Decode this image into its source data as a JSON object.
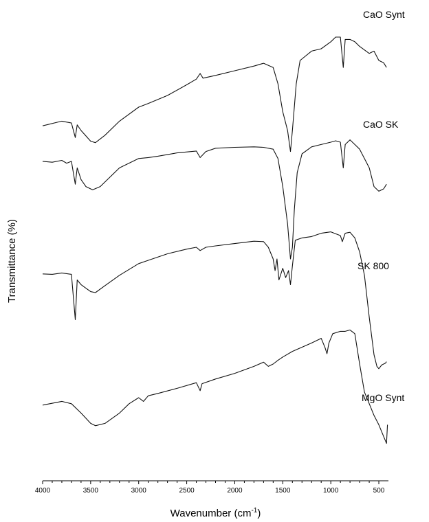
{
  "chart_data": {
    "type": "line",
    "xlabel": "Wavenumber (cm",
    "xlabel_sup": "-1",
    "xlabel_end": ")",
    "ylabel": "Transmittance (%)",
    "xlim": [
      4000,
      400
    ],
    "x_reversed": true,
    "x_ticks": [
      4000,
      3500,
      3000,
      2500,
      2000,
      1500,
      1000,
      500
    ],
    "x_tick_labels": [
      "4000",
      "3500",
      "3000",
      "2500",
      "2000",
      "1500",
      "1000",
      "500"
    ],
    "y_ticks_shown": false,
    "ylim": [
      0,
      100
    ],
    "grid": false,
    "series": [
      {
        "name": "CaO Synt",
        "points": [
          [
            4000,
            76
          ],
          [
            3800,
            77
          ],
          [
            3700,
            76.6
          ],
          [
            3660,
            73.5
          ],
          [
            3640,
            76.2
          ],
          [
            3600,
            75
          ],
          [
            3500,
            72.7
          ],
          [
            3450,
            72.4
          ],
          [
            3350,
            74
          ],
          [
            3200,
            77
          ],
          [
            3000,
            80
          ],
          [
            2900,
            80.8
          ],
          [
            2700,
            82.5
          ],
          [
            2500,
            84.8
          ],
          [
            2400,
            86
          ],
          [
            2360,
            87.2
          ],
          [
            2330,
            86.2
          ],
          [
            2200,
            86.8
          ],
          [
            2000,
            87.8
          ],
          [
            1800,
            88.8
          ],
          [
            1700,
            89.4
          ],
          [
            1600,
            88.5
          ],
          [
            1550,
            85
          ],
          [
            1500,
            79
          ],
          [
            1450,
            75
          ],
          [
            1420,
            70.5
          ],
          [
            1400,
            75
          ],
          [
            1360,
            85
          ],
          [
            1320,
            90
          ],
          [
            1200,
            92
          ],
          [
            1100,
            92.5
          ],
          [
            1000,
            94
          ],
          [
            950,
            95
          ],
          [
            900,
            95
          ],
          [
            870,
            88.5
          ],
          [
            850,
            94.5
          ],
          [
            800,
            94.5
          ],
          [
            750,
            94
          ],
          [
            700,
            93
          ],
          [
            600,
            91.5
          ],
          [
            550,
            92
          ],
          [
            500,
            90
          ],
          [
            450,
            89.5
          ],
          [
            420,
            88.5
          ]
        ]
      },
      {
        "name": "CaO SK",
        "points": [
          [
            4000,
            68.4
          ],
          [
            3900,
            68.2
          ],
          [
            3800,
            68.6
          ],
          [
            3750,
            68
          ],
          [
            3700,
            68.4
          ],
          [
            3660,
            63.5
          ],
          [
            3640,
            67
          ],
          [
            3600,
            64.5
          ],
          [
            3550,
            63
          ],
          [
            3480,
            62.3
          ],
          [
            3400,
            63
          ],
          [
            3300,
            65
          ],
          [
            3200,
            67
          ],
          [
            3000,
            69
          ],
          [
            2900,
            69.2
          ],
          [
            2800,
            69.5
          ],
          [
            2600,
            70.2
          ],
          [
            2400,
            70.6
          ],
          [
            2360,
            69.2
          ],
          [
            2300,
            70.5
          ],
          [
            2200,
            71.2
          ],
          [
            2000,
            71.4
          ],
          [
            1800,
            71.5
          ],
          [
            1700,
            71.4
          ],
          [
            1600,
            71
          ],
          [
            1550,
            69
          ],
          [
            1500,
            63
          ],
          [
            1450,
            55
          ],
          [
            1420,
            47.5
          ],
          [
            1400,
            50
          ],
          [
            1380,
            58
          ],
          [
            1350,
            66
          ],
          [
            1300,
            70
          ],
          [
            1200,
            71.5
          ],
          [
            1100,
            72
          ],
          [
            1000,
            72.5
          ],
          [
            950,
            72.8
          ],
          [
            900,
            72.5
          ],
          [
            870,
            67
          ],
          [
            850,
            72
          ],
          [
            800,
            73
          ],
          [
            750,
            72
          ],
          [
            700,
            71
          ],
          [
            600,
            67
          ],
          [
            550,
            63
          ],
          [
            500,
            62
          ],
          [
            450,
            62.5
          ],
          [
            420,
            63.5
          ]
        ]
      },
      {
        "name": "SK 800",
        "points": [
          [
            4000,
            44.3
          ],
          [
            3900,
            44.2
          ],
          [
            3800,
            44.5
          ],
          [
            3700,
            44.2
          ],
          [
            3660,
            34.5
          ],
          [
            3640,
            43
          ],
          [
            3600,
            42
          ],
          [
            3500,
            40.5
          ],
          [
            3450,
            40.3
          ],
          [
            3350,
            41.8
          ],
          [
            3200,
            44
          ],
          [
            3000,
            46.5
          ],
          [
            2900,
            47.2
          ],
          [
            2700,
            48.6
          ],
          [
            2500,
            49.6
          ],
          [
            2400,
            50
          ],
          [
            2360,
            49.3
          ],
          [
            2300,
            50
          ],
          [
            2200,
            50.3
          ],
          [
            2000,
            50.8
          ],
          [
            1800,
            51.3
          ],
          [
            1700,
            51.2
          ],
          [
            1650,
            50
          ],
          [
            1600,
            47.5
          ],
          [
            1580,
            45
          ],
          [
            1560,
            47.5
          ],
          [
            1540,
            43
          ],
          [
            1500,
            45.5
          ],
          [
            1470,
            43.5
          ],
          [
            1440,
            45
          ],
          [
            1420,
            42
          ],
          [
            1400,
            46
          ],
          [
            1370,
            51.5
          ],
          [
            1300,
            52
          ],
          [
            1200,
            52.3
          ],
          [
            1100,
            53
          ],
          [
            1000,
            53.3
          ],
          [
            900,
            52.5
          ],
          [
            880,
            51.2
          ],
          [
            850,
            53
          ],
          [
            800,
            53.2
          ],
          [
            750,
            52
          ],
          [
            700,
            49
          ],
          [
            650,
            44
          ],
          [
            600,
            35
          ],
          [
            550,
            27
          ],
          [
            520,
            24.5
          ],
          [
            500,
            24
          ],
          [
            470,
            24.8
          ],
          [
            430,
            25.2
          ],
          [
            420,
            25.5
          ]
        ]
      },
      {
        "name": "MgO Synt",
        "points": [
          [
            4000,
            16.2
          ],
          [
            3800,
            17
          ],
          [
            3700,
            16.5
          ],
          [
            3600,
            14.5
          ],
          [
            3500,
            12.3
          ],
          [
            3450,
            11.8
          ],
          [
            3350,
            12.3
          ],
          [
            3200,
            14.5
          ],
          [
            3100,
            16.5
          ],
          [
            3000,
            17.8
          ],
          [
            2950,
            17
          ],
          [
            2900,
            18.2
          ],
          [
            2800,
            18.7
          ],
          [
            2600,
            19.8
          ],
          [
            2400,
            21
          ],
          [
            2360,
            19.3
          ],
          [
            2340,
            20.8
          ],
          [
            2200,
            21.8
          ],
          [
            2000,
            23
          ],
          [
            1800,
            24.5
          ],
          [
            1700,
            25.4
          ],
          [
            1650,
            24.5
          ],
          [
            1600,
            25
          ],
          [
            1550,
            25.8
          ],
          [
            1500,
            26.5
          ],
          [
            1400,
            27.7
          ],
          [
            1300,
            28.6
          ],
          [
            1200,
            29.5
          ],
          [
            1100,
            30.5
          ],
          [
            1060,
            28.5
          ],
          [
            1040,
            27.2
          ],
          [
            1020,
            29.5
          ],
          [
            980,
            31.5
          ],
          [
            900,
            32
          ],
          [
            850,
            32
          ],
          [
            800,
            32.3
          ],
          [
            750,
            31.5
          ],
          [
            700,
            25
          ],
          [
            650,
            19
          ],
          [
            600,
            16.5
          ],
          [
            550,
            14
          ],
          [
            500,
            12
          ],
          [
            450,
            9.5
          ],
          [
            420,
            8
          ],
          [
            410,
            12
          ]
        ]
      }
    ],
    "annotations": [
      {
        "text": "CaO Synt",
        "series": 0
      },
      {
        "text": "CaO SK",
        "series": 1
      },
      {
        "text": "SK 800",
        "series": 2
      },
      {
        "text": "MgO Synt",
        "series": 3
      }
    ]
  }
}
